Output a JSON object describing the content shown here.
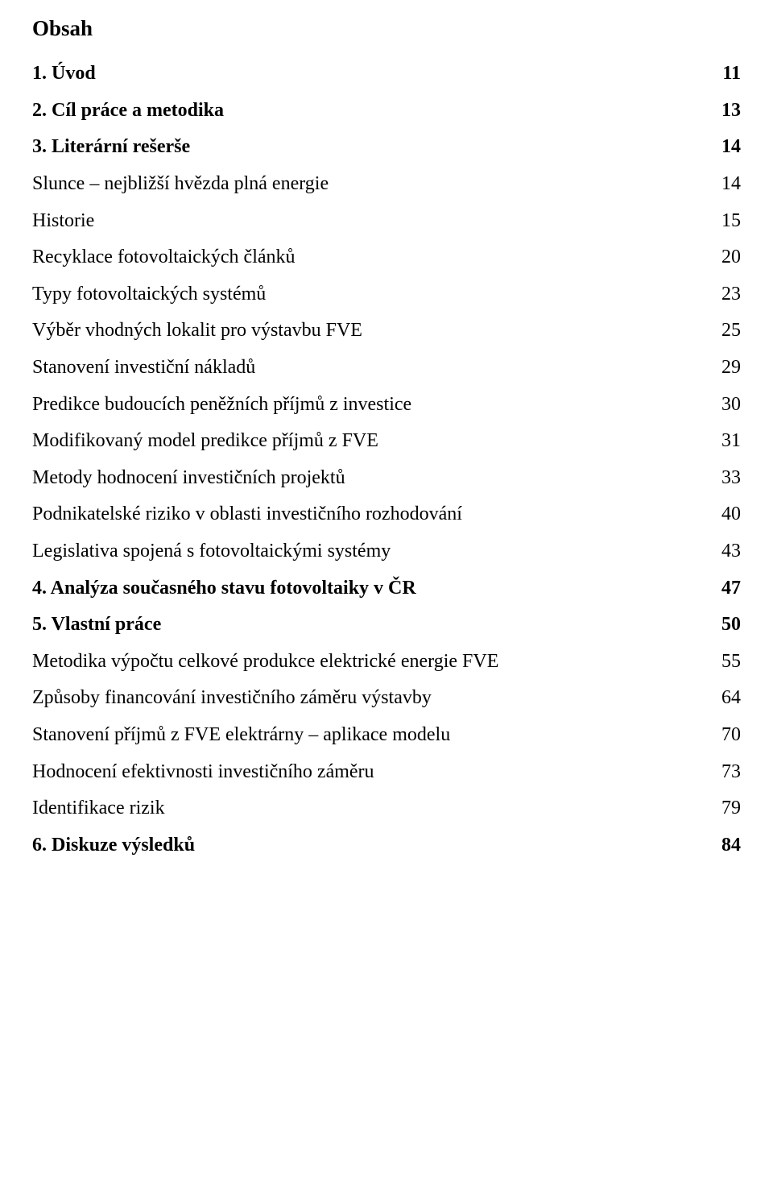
{
  "heading": "Obsah",
  "entries": [
    {
      "label": "1. Úvod",
      "page": "11",
      "bold": true
    },
    {
      "label": "2. Cíl práce a metodika",
      "page": "13",
      "bold": true
    },
    {
      "label": "3. Literární rešerše",
      "page": "14",
      "bold": true
    },
    {
      "label": "Slunce – nejbližší hvězda plná energie",
      "page": "14",
      "bold": false
    },
    {
      "label": "Historie",
      "page": "15",
      "bold": false
    },
    {
      "label": "Recyklace fotovoltaických článků",
      "page": "20",
      "bold": false
    },
    {
      "label": "Typy fotovoltaických systémů",
      "page": "23",
      "bold": false
    },
    {
      "label": "Výběr vhodných lokalit pro výstavbu FVE",
      "page": "25",
      "bold": false
    },
    {
      "label": "Stanovení investiční nákladů",
      "page": "29",
      "bold": false
    },
    {
      "label": "Predikce budoucích peněžních příjmů z investice",
      "page": "30",
      "bold": false
    },
    {
      "label": "Modifikovaný model predikce příjmů z FVE",
      "page": "31",
      "bold": false
    },
    {
      "label": "Metody hodnocení investičních projektů",
      "page": "33",
      "bold": false
    },
    {
      "label": "Podnikatelské riziko v oblasti investičního rozhodování",
      "page": "40",
      "bold": false
    },
    {
      "label": "Legislativa spojená s fotovoltaickými systémy",
      "page": "43",
      "bold": false
    },
    {
      "label": "4. Analýza současného stavu fotovoltaiky v ČR",
      "page": "47",
      "bold": true
    },
    {
      "label": "5. Vlastní práce",
      "page": "50",
      "bold": true
    },
    {
      "label": "Metodika výpočtu celkové produkce elektrické energie FVE",
      "page": "55",
      "bold": false
    },
    {
      "label": "Způsoby financování investičního záměru výstavby",
      "page": "64",
      "bold": false
    },
    {
      "label": "Stanovení příjmů z FVE elektrárny – aplikace modelu",
      "page": "70",
      "bold": false
    },
    {
      "label": "Hodnocení efektivnosti investičního záměru",
      "page": "73",
      "bold": false
    },
    {
      "label": "Identifikace rizik",
      "page": "79",
      "bold": false
    },
    {
      "label": "6. Diskuze výsledků",
      "page": "84",
      "bold": true
    }
  ]
}
